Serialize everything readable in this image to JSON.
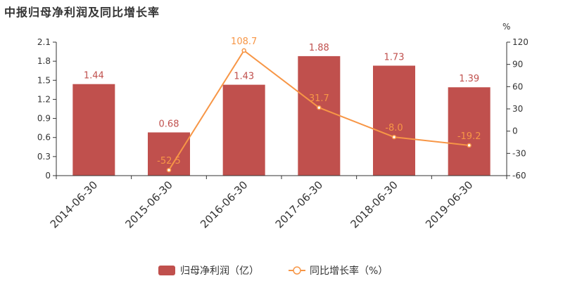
{
  "title": "中报归母净利润及同比增长率",
  "chart_data": {
    "type": "bar",
    "title": "中报归母净利润及同比增长率",
    "categories": [
      "2014-06-30",
      "2015-06-30",
      "2016-06-30",
      "2017-06-30",
      "2018-06-30",
      "2019-06-30"
    ],
    "series": [
      {
        "name": "归母净利润（亿）",
        "type": "bar",
        "axis": "left",
        "values": [
          1.44,
          0.68,
          1.43,
          1.88,
          1.73,
          1.39
        ],
        "labels": [
          "1.44",
          "0.68",
          "1.43",
          "1.88",
          "1.73",
          "1.39"
        ],
        "color": "#c0504d"
      },
      {
        "name": "同比增长率（%）",
        "type": "line",
        "axis": "right",
        "values": [
          null,
          -52.5,
          108.7,
          31.7,
          -8.0,
          -19.2
        ],
        "labels": [
          "",
          "-52.5",
          "108.7",
          "31.7",
          "-8.0",
          "-19.2"
        ],
        "color": "#f79646"
      }
    ],
    "y_left": {
      "ylim": [
        0,
        2.1
      ],
      "ticks": [
        0,
        0.3,
        0.6,
        0.9,
        1.2,
        1.5,
        1.8,
        2.1
      ],
      "tick_labels": [
        "0",
        "0.3",
        "0.6",
        "0.9",
        "1.2",
        "1.5",
        "1.8",
        "2.1"
      ]
    },
    "y_right": {
      "unit": "%",
      "ylim": [
        -60,
        120
      ],
      "ticks": [
        -60,
        -30,
        0,
        30,
        60,
        90,
        120
      ],
      "tick_labels": [
        "-60",
        "-30",
        "0",
        "30",
        "60",
        "90",
        "120"
      ]
    },
    "grid": false,
    "legend": "bottom-center"
  }
}
